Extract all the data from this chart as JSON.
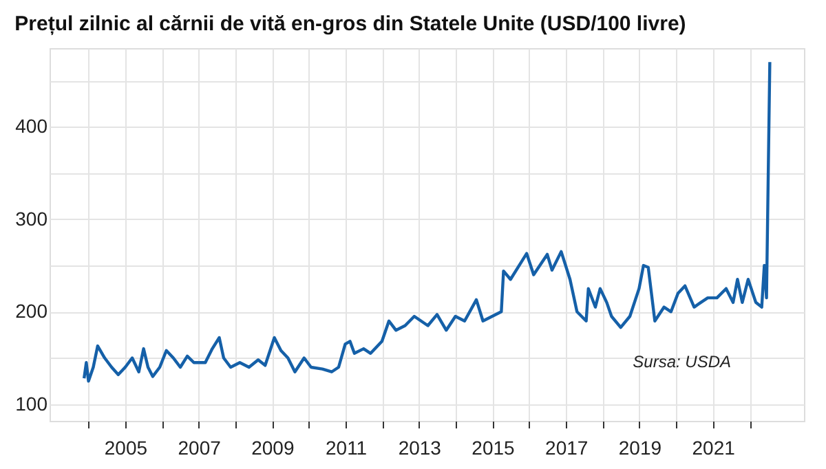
{
  "chart_data": {
    "type": "line",
    "title": "Prețul zilnic al cărnii de vită en-gros din Statele Unite (USD/100 livre)",
    "annotations": [
      "Sursa: USDA"
    ],
    "x": [
      2003.88,
      2003.94,
      2004.0,
      2004.13,
      2004.25,
      2004.44,
      2004.63,
      2004.81,
      2005.0,
      2005.19,
      2005.37,
      2005.5,
      2005.62,
      2005.75,
      2005.94,
      2006.12,
      2006.31,
      2006.5,
      2006.69,
      2006.87,
      2007.18,
      2007.37,
      2007.56,
      2007.68,
      2007.87,
      2008.12,
      2008.37,
      2008.62,
      2008.81,
      2009.06,
      2009.24,
      2009.43,
      2009.62,
      2009.87,
      2010.06,
      2010.37,
      2010.62,
      2010.81,
      2010.99,
      2011.12,
      2011.24,
      2011.49,
      2011.68,
      2011.99,
      2012.18,
      2012.37,
      2012.62,
      2012.87,
      2013.24,
      2013.49,
      2013.74,
      2013.99,
      2014.24,
      2014.56,
      2014.74,
      2014.99,
      2015.24,
      2015.3,
      2015.49,
      2015.93,
      2016.12,
      2016.49,
      2016.62,
      2016.87,
      2017.11,
      2017.3,
      2017.55,
      2017.61,
      2017.8,
      2017.93,
      2018.11,
      2018.24,
      2018.49,
      2018.74,
      2018.99,
      2019.11,
      2019.24,
      2019.42,
      2019.67,
      2019.86,
      2020.05,
      2020.24,
      2020.49,
      2020.67,
      2020.86,
      2021.11,
      2021.36,
      2021.55,
      2021.67,
      2021.8,
      2021.96,
      2022.17,
      2022.33,
      2022.4,
      2022.46,
      2022.55
    ],
    "series": [
      {
        "color": "#1560a8",
        "values": [
          128,
          145,
          125,
          140,
          163,
          150,
          140,
          132,
          140,
          150,
          135,
          160,
          140,
          130,
          140,
          158,
          150,
          140,
          152,
          145,
          145,
          160,
          172,
          150,
          140,
          145,
          140,
          148,
          142,
          172,
          158,
          150,
          135,
          150,
          140,
          138,
          135,
          140,
          165,
          168,
          155,
          160,
          155,
          168,
          190,
          180,
          185,
          195,
          185,
          197,
          180,
          195,
          190,
          213,
          190,
          195,
          200,
          244,
          235,
          263,
          240,
          262,
          245,
          265,
          235,
          200,
          190,
          225,
          205,
          225,
          210,
          195,
          183,
          195,
          225,
          250,
          248,
          190,
          205,
          200,
          220,
          228,
          205,
          210,
          215,
          215,
          225,
          210,
          235,
          210,
          235,
          210,
          205,
          250,
          215,
          470
        ]
      }
    ],
    "xlim": [
      2002.94,
      2023.48
    ],
    "xticks": [
      {
        "value": 2004,
        "label": null
      },
      2005,
      {
        "value": 2006,
        "label": null
      },
      2007,
      {
        "value": 2008,
        "label": null
      },
      2009,
      {
        "value": 2010,
        "label": null
      },
      2011,
      {
        "value": 2012,
        "label": null
      },
      2013,
      {
        "value": 2014,
        "label": null
      },
      2015,
      {
        "value": 2016,
        "label": null
      },
      2017,
      {
        "value": 2018,
        "label": null
      },
      2019,
      {
        "value": 2020,
        "label": null
      },
      2021,
      {
        "value": 2022,
        "label": null
      }
    ],
    "ylim": [
      82,
      485
    ],
    "yticks": [
      100,
      {
        "value": 150,
        "label": null
      },
      200,
      {
        "value": 250,
        "label": null
      },
      300,
      {
        "value": 350,
        "label": null
      },
      400,
      {
        "value": 450,
        "label": null
      }
    ],
    "grid": true,
    "legend": false,
    "marker": "none",
    "line_style": "solid"
  }
}
